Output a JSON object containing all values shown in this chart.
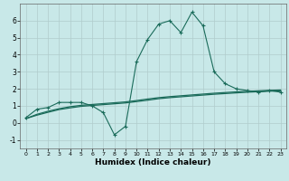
{
  "xlabel": "Humidex (Indice chaleur)",
  "background_color": "#c8e8e8",
  "grid_color": "#b0cccc",
  "line_color": "#1a6b5a",
  "xlim": [
    -0.5,
    23.5
  ],
  "ylim": [
    -1.5,
    7.0
  ],
  "xticks": [
    0,
    1,
    2,
    3,
    4,
    5,
    6,
    7,
    8,
    9,
    10,
    11,
    12,
    13,
    14,
    15,
    16,
    17,
    18,
    19,
    20,
    21,
    22,
    23
  ],
  "yticks": [
    -1,
    0,
    1,
    2,
    3,
    4,
    5,
    6
  ],
  "curve1_x": [
    0,
    1,
    2,
    3,
    4,
    5,
    6,
    7,
    8,
    9,
    10,
    11,
    12,
    13,
    14,
    15,
    16,
    17,
    18,
    19,
    20,
    21,
    22,
    23
  ],
  "curve1_y": [
    0.3,
    0.8,
    0.9,
    1.2,
    1.2,
    1.2,
    1.0,
    0.6,
    -0.7,
    -0.2,
    3.6,
    4.9,
    5.8,
    6.0,
    5.3,
    6.5,
    5.7,
    3.0,
    2.3,
    2.0,
    1.9,
    1.8,
    1.9,
    1.8
  ],
  "curve2_x": [
    0,
    1,
    2,
    3,
    4,
    5,
    6,
    7,
    8,
    9,
    10,
    11,
    12,
    13,
    14,
    15,
    16,
    17,
    18,
    19,
    20,
    21,
    22,
    23
  ],
  "curve2_y": [
    0.25,
    0.45,
    0.62,
    0.78,
    0.88,
    0.97,
    1.02,
    1.07,
    1.12,
    1.17,
    1.25,
    1.33,
    1.42,
    1.48,
    1.53,
    1.58,
    1.63,
    1.68,
    1.72,
    1.76,
    1.8,
    1.83,
    1.86,
    1.88
  ],
  "curve3_x": [
    0,
    1,
    2,
    3,
    4,
    5,
    6,
    7,
    8,
    9,
    10,
    11,
    12,
    13,
    14,
    15,
    16,
    17,
    18,
    19,
    20,
    21,
    22,
    23
  ],
  "curve3_y": [
    0.25,
    0.5,
    0.68,
    0.83,
    0.95,
    1.03,
    1.08,
    1.13,
    1.18,
    1.23,
    1.31,
    1.4,
    1.48,
    1.54,
    1.59,
    1.64,
    1.69,
    1.74,
    1.78,
    1.82,
    1.85,
    1.88,
    1.91,
    1.93
  ]
}
